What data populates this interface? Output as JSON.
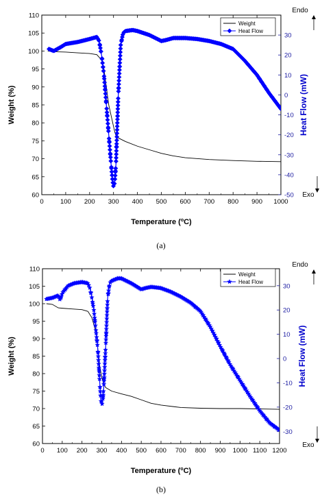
{
  "chart_data": [
    {
      "type": "line",
      "caption": "(a)",
      "xlabel_main": "Temperature (",
      "xlabel_sup": "o",
      "xlabel_end": "C)",
      "ylabel_left": "Weight (%)",
      "ylabel_right": "Heat Flow (mW)",
      "xlim": [
        0,
        1000
      ],
      "xticks": [
        0,
        100,
        200,
        300,
        400,
        500,
        600,
        700,
        800,
        900,
        1000
      ],
      "ylim_left": [
        60,
        110
      ],
      "yticks_left": [
        60,
        65,
        70,
        75,
        80,
        85,
        90,
        95,
        100,
        105,
        110
      ],
      "ylim_right": [
        -50,
        40
      ],
      "yticks_right": [
        -50,
        -40,
        -30,
        -20,
        -10,
        0,
        10,
        20,
        30
      ],
      "annotations": {
        "top_right": "Endo",
        "bottom_right": "Exo"
      },
      "legend_position": "top-right",
      "series": [
        {
          "name": "Weight",
          "axis": "left",
          "color": "#000000",
          "marker": "none",
          "x": [
            25,
            50,
            100,
            150,
            200,
            230,
            250,
            260,
            270,
            280,
            290,
            300,
            305,
            310,
            320,
            350,
            400,
            450,
            500,
            550,
            600,
            700,
            800,
            900,
            1000
          ],
          "values": [
            100,
            99.8,
            99.7,
            99.5,
            99.3,
            99.0,
            97.5,
            95.0,
            90.0,
            85.0,
            82.0,
            79.0,
            77.5,
            76.5,
            75.8,
            74.8,
            73.5,
            72.5,
            71.5,
            70.8,
            70.3,
            69.8,
            69.5,
            69.3,
            69.2
          ]
        },
        {
          "name": "Heat Flow",
          "axis": "right",
          "color": "#0000ff",
          "marker": "diamond",
          "x": [
            30,
            50,
            80,
            100,
            150,
            200,
            230,
            240,
            250,
            260,
            270,
            280,
            290,
            295,
            300,
            305,
            310,
            320,
            330,
            340,
            350,
            380,
            400,
            450,
            500,
            520,
            550,
            600,
            650,
            700,
            750,
            800,
            850,
            900,
            950,
            1000
          ],
          "values": [
            23,
            22,
            24,
            25.5,
            26.5,
            28,
            29,
            27,
            20,
            10,
            -5,
            -20,
            -35,
            -42,
            -46,
            -44,
            -35,
            0,
            25,
            31,
            32,
            32.5,
            32,
            30,
            27,
            27.5,
            28.5,
            28.5,
            28,
            27,
            25.5,
            23,
            17,
            10,
            1,
            -7
          ]
        }
      ]
    },
    {
      "type": "line",
      "caption": "(b)",
      "xlabel_main": "Temperature (",
      "xlabel_sup": "o",
      "xlabel_end": "C)",
      "ylabel_left": "Weight (%)",
      "ylabel_right": "Heat Flow (mW)",
      "xlim": [
        0,
        1200
      ],
      "xticks": [
        0,
        100,
        200,
        300,
        400,
        500,
        600,
        700,
        800,
        900,
        1000,
        1100,
        1200
      ],
      "ylim_left": [
        60,
        110
      ],
      "yticks_left": [
        60,
        65,
        70,
        75,
        80,
        85,
        90,
        95,
        100,
        105,
        110
      ],
      "ylim_right": [
        -35,
        37
      ],
      "yticks_right": [
        -30,
        -20,
        -10,
        0,
        10,
        20,
        30
      ],
      "annotations": {
        "top_right": "Endo",
        "bottom_right": "Exo"
      },
      "legend_position": "top-right",
      "series": [
        {
          "name": "Weight",
          "axis": "left",
          "color": "#000000",
          "marker": "none",
          "x": [
            20,
            50,
            80,
            100,
            150,
            200,
            230,
            250,
            270,
            280,
            290,
            300,
            310,
            320,
            350,
            400,
            450,
            500,
            550,
            600,
            700,
            800,
            900,
            1000,
            1100,
            1200
          ],
          "values": [
            100,
            99.8,
            98.8,
            98.7,
            98.5,
            98.3,
            97.8,
            96.0,
            92.0,
            87.0,
            82.0,
            79.0,
            77.0,
            76.0,
            75.0,
            74.2,
            73.5,
            72.5,
            71.5,
            71.0,
            70.3,
            70.1,
            70.0,
            70.0,
            69.9,
            69.8
          ]
        },
        {
          "name": "Heat Flow",
          "axis": "right",
          "color": "#0000ff",
          "marker": "star",
          "x": [
            20,
            50,
            80,
            90,
            100,
            130,
            160,
            200,
            230,
            240,
            250,
            260,
            270,
            280,
            290,
            295,
            300,
            305,
            310,
            320,
            330,
            340,
            350,
            380,
            400,
            450,
            500,
            520,
            550,
            600,
            650,
            700,
            750,
            800,
            850,
            900,
            950,
            1000,
            1050,
            1100,
            1150,
            1200
          ],
          "values": [
            24.5,
            25,
            26,
            24,
            27,
            30,
            31,
            31.5,
            31,
            29,
            25,
            20,
            12,
            4,
            -10,
            -17,
            -19,
            -18,
            -12,
            5,
            25,
            31,
            32,
            33,
            33,
            31,
            28.5,
            29,
            29.5,
            29,
            27.5,
            25.5,
            23,
            19.5,
            13,
            5,
            -2.5,
            -9,
            -15.5,
            -21.5,
            -26.5,
            -29.5
          ]
        }
      ]
    }
  ]
}
